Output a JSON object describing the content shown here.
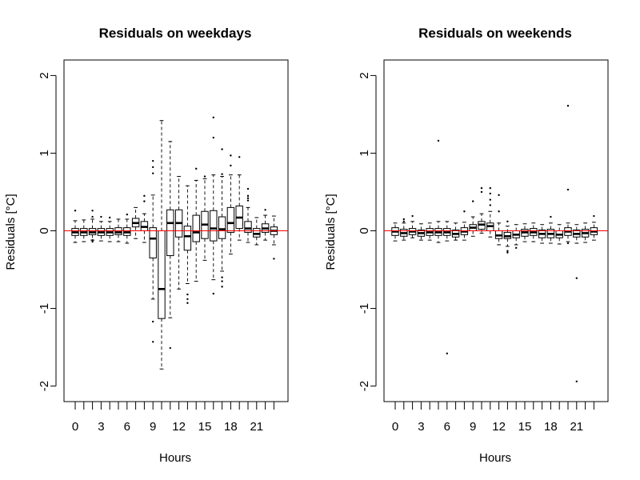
{
  "chart_data": [
    {
      "type": "box",
      "title": "Residuals on weekdays",
      "xlabel": "Hours",
      "ylabel": "Residuals [°C]",
      "ylim": [
        -2.2,
        2.2
      ],
      "yticks": [
        -2,
        -1,
        0,
        1,
        2
      ],
      "xticks": [
        0,
        3,
        6,
        9,
        12,
        15,
        18,
        21
      ],
      "reference_line": {
        "y": 0,
        "color": "#ff0000"
      },
      "boxes": [
        {
          "hour": 0,
          "q1": -0.06,
          "median": -0.02,
          "q3": 0.03,
          "whisker_low": -0.15,
          "whisker_high": 0.13,
          "outliers": [
            0.26
          ]
        },
        {
          "hour": 1,
          "q1": -0.06,
          "median": -0.02,
          "q3": 0.03,
          "whisker_low": -0.14,
          "whisker_high": 0.14,
          "outliers": []
        },
        {
          "hour": 2,
          "q1": -0.05,
          "median": -0.02,
          "q3": 0.03,
          "whisker_low": -0.12,
          "whisker_high": 0.15,
          "outliers": [
            0.26,
            0.18,
            -0.12,
            -0.14
          ]
        },
        {
          "hour": 3,
          "q1": -0.06,
          "median": -0.02,
          "q3": 0.03,
          "whisker_low": -0.13,
          "whisker_high": 0.12,
          "outliers": [
            0.18
          ]
        },
        {
          "hour": 4,
          "q1": -0.06,
          "median": -0.02,
          "q3": 0.03,
          "whisker_low": -0.14,
          "whisker_high": 0.12,
          "outliers": [
            0.17
          ]
        },
        {
          "hour": 5,
          "q1": -0.05,
          "median": -0.02,
          "q3": 0.04,
          "whisker_low": -0.14,
          "whisker_high": 0.15,
          "outliers": []
        },
        {
          "hour": 6,
          "q1": -0.06,
          "median": -0.02,
          "q3": 0.04,
          "whisker_low": -0.16,
          "whisker_high": 0.15,
          "outliers": [
            0.21
          ]
        },
        {
          "hour": 7,
          "q1": 0.05,
          "median": 0.1,
          "q3": 0.16,
          "whisker_low": -0.1,
          "whisker_high": 0.3,
          "outliers": []
        },
        {
          "hour": 8,
          "q1": 0.0,
          "median": 0.05,
          "q3": 0.12,
          "whisker_low": -0.15,
          "whisker_high": 0.22,
          "outliers": [
            0.45,
            0.38
          ]
        },
        {
          "hour": 9,
          "q1": -0.35,
          "median": -0.1,
          "q3": 0.04,
          "whisker_low": -0.88,
          "whisker_high": 0.46,
          "outliers": [
            0.9,
            0.82,
            0.74,
            -1.17,
            -1.43
          ]
        },
        {
          "hour": 10,
          "q1": -1.13,
          "median": -0.75,
          "q3": 0.0,
          "whisker_low": -1.78,
          "whisker_high": 1.42,
          "outliers": []
        },
        {
          "hour": 11,
          "q1": -0.32,
          "median": 0.1,
          "q3": 0.27,
          "whisker_low": -1.12,
          "whisker_high": 1.15,
          "outliers": [
            -1.51
          ]
        },
        {
          "hour": 12,
          "q1": -0.08,
          "median": 0.1,
          "q3": 0.27,
          "whisker_low": -0.75,
          "whisker_high": 0.7,
          "outliers": []
        },
        {
          "hour": 13,
          "q1": -0.25,
          "median": -0.07,
          "q3": 0.06,
          "whisker_low": -0.68,
          "whisker_high": 0.58,
          "outliers": [
            -0.82,
            -0.88,
            -0.93
          ]
        },
        {
          "hour": 14,
          "q1": -0.14,
          "median": -0.02,
          "q3": 0.2,
          "whisker_low": -0.65,
          "whisker_high": 0.65,
          "outliers": [
            0.8
          ]
        },
        {
          "hour": 15,
          "q1": -0.1,
          "median": 0.08,
          "q3": 0.25,
          "whisker_low": -0.38,
          "whisker_high": 0.67,
          "outliers": [
            0.7
          ]
        },
        {
          "hour": 16,
          "q1": -0.13,
          "median": 0.03,
          "q3": 0.26,
          "whisker_low": -0.63,
          "whisker_high": 0.72,
          "outliers": [
            1.46,
            1.2,
            -0.81
          ]
        },
        {
          "hour": 17,
          "q1": -0.1,
          "median": 0.02,
          "q3": 0.18,
          "whisker_low": -0.52,
          "whisker_high": 0.7,
          "outliers": [
            1.05,
            0.73,
            -0.6,
            -0.65,
            -0.72
          ]
        },
        {
          "hour": 18,
          "q1": -0.02,
          "median": 0.1,
          "q3": 0.3,
          "whisker_low": -0.3,
          "whisker_high": 0.72,
          "outliers": [
            0.97,
            0.84
          ]
        },
        {
          "hour": 19,
          "q1": 0.03,
          "median": 0.17,
          "q3": 0.32,
          "whisker_low": -0.12,
          "whisker_high": 0.72,
          "outliers": [
            0.95
          ]
        },
        {
          "hour": 20,
          "q1": -0.02,
          "median": 0.03,
          "q3": 0.12,
          "whisker_low": -0.15,
          "whisker_high": 0.3,
          "outliers": [
            0.54,
            0.45,
            0.42,
            0.39
          ]
        },
        {
          "hour": 21,
          "q1": -0.08,
          "median": -0.04,
          "q3": 0.03,
          "whisker_low": -0.18,
          "whisker_high": 0.17,
          "outliers": []
        },
        {
          "hour": 22,
          "q1": -0.02,
          "median": 0.03,
          "q3": 0.09,
          "whisker_low": -0.12,
          "whisker_high": 0.2,
          "outliers": [
            0.27
          ]
        },
        {
          "hour": 23,
          "q1": -0.05,
          "median": 0.0,
          "q3": 0.05,
          "whisker_low": -0.18,
          "whisker_high": 0.19,
          "outliers": [
            -0.36
          ]
        }
      ]
    },
    {
      "type": "box",
      "title": "Residuals on weekends",
      "xlabel": "Hours",
      "ylabel": "Residuals [°C]",
      "ylim": [
        -2.2,
        2.2
      ],
      "yticks": [
        -2,
        -1,
        0,
        1,
        2
      ],
      "xticks": [
        0,
        3,
        6,
        9,
        12,
        15,
        18,
        21
      ],
      "reference_line": {
        "y": 0,
        "color": "#ff0000"
      },
      "boxes": [
        {
          "hour": 0,
          "q1": -0.06,
          "median": -0.01,
          "q3": 0.04,
          "whisker_low": -0.13,
          "whisker_high": 0.1,
          "outliers": []
        },
        {
          "hour": 1,
          "q1": -0.07,
          "median": -0.03,
          "q3": 0.02,
          "whisker_low": -0.12,
          "whisker_high": 0.1,
          "outliers": [
            0.15,
            0.12
          ]
        },
        {
          "hour": 2,
          "q1": -0.05,
          "median": -0.01,
          "q3": 0.03,
          "whisker_low": -0.09,
          "whisker_high": 0.12,
          "outliers": [
            0.19
          ]
        },
        {
          "hour": 3,
          "q1": -0.07,
          "median": -0.03,
          "q3": 0.01,
          "whisker_low": -0.12,
          "whisker_high": 0.09,
          "outliers": []
        },
        {
          "hour": 4,
          "q1": -0.06,
          "median": -0.02,
          "q3": 0.03,
          "whisker_low": -0.12,
          "whisker_high": 0.1,
          "outliers": []
        },
        {
          "hour": 5,
          "q1": -0.06,
          "median": -0.02,
          "q3": 0.03,
          "whisker_low": -0.15,
          "whisker_high": 0.12,
          "outliers": [
            1.16
          ]
        },
        {
          "hour": 6,
          "q1": -0.06,
          "median": -0.02,
          "q3": 0.03,
          "whisker_low": -0.13,
          "whisker_high": 0.12,
          "outliers": [
            -1.58
          ]
        },
        {
          "hour": 7,
          "q1": -0.08,
          "median": -0.04,
          "q3": 0.01,
          "whisker_low": -0.12,
          "whisker_high": 0.1,
          "outliers": []
        },
        {
          "hour": 8,
          "q1": -0.05,
          "median": -0.01,
          "q3": 0.04,
          "whisker_low": -0.12,
          "whisker_high": 0.11,
          "outliers": [
            0.25
          ]
        },
        {
          "hour": 9,
          "q1": 0.0,
          "median": 0.04,
          "q3": 0.08,
          "whisker_low": -0.07,
          "whisker_high": 0.18,
          "outliers": [
            0.38
          ]
        },
        {
          "hour": 10,
          "q1": 0.02,
          "median": 0.08,
          "q3": 0.12,
          "whisker_low": -0.03,
          "whisker_high": 0.22,
          "outliers": [
            0.55,
            0.5
          ]
        },
        {
          "hour": 11,
          "q1": 0.0,
          "median": 0.06,
          "q3": 0.1,
          "whisker_low": -0.08,
          "whisker_high": 0.25,
          "outliers": [
            0.55,
            0.48,
            0.4,
            0.33
          ]
        },
        {
          "hour": 12,
          "q1": -0.1,
          "median": -0.06,
          "q3": 0.0,
          "whisker_low": -0.18,
          "whisker_high": 0.1,
          "outliers": [
            0.46,
            0.25
          ]
        },
        {
          "hour": 13,
          "q1": -0.1,
          "median": -0.07,
          "q3": -0.02,
          "whisker_low": -0.2,
          "whisker_high": 0.06,
          "outliers": [
            -0.26,
            -0.28,
            0.12
          ]
        },
        {
          "hour": 14,
          "q1": -0.09,
          "median": -0.05,
          "q3": 0.0,
          "whisker_low": -0.18,
          "whisker_high": 0.08,
          "outliers": [
            -0.22
          ]
        },
        {
          "hour": 15,
          "q1": -0.07,
          "median": -0.02,
          "q3": 0.02,
          "whisker_low": -0.14,
          "whisker_high": 0.09,
          "outliers": []
        },
        {
          "hour": 16,
          "q1": -0.06,
          "median": -0.02,
          "q3": 0.03,
          "whisker_low": -0.14,
          "whisker_high": 0.1,
          "outliers": []
        },
        {
          "hour": 17,
          "q1": -0.09,
          "median": -0.04,
          "q3": 0.01,
          "whisker_low": -0.16,
          "whisker_high": 0.08,
          "outliers": []
        },
        {
          "hour": 18,
          "q1": -0.09,
          "median": -0.04,
          "q3": 0.02,
          "whisker_low": -0.16,
          "whisker_high": 0.1,
          "outliers": [
            0.18
          ]
        },
        {
          "hour": 19,
          "q1": -0.09,
          "median": -0.05,
          "q3": 0.0,
          "whisker_low": -0.17,
          "whisker_high": 0.08,
          "outliers": []
        },
        {
          "hour": 20,
          "q1": -0.06,
          "median": -0.01,
          "q3": 0.04,
          "whisker_low": -0.14,
          "whisker_high": 0.1,
          "outliers": [
            1.61,
            0.53,
            -0.16
          ]
        },
        {
          "hour": 21,
          "q1": -0.08,
          "median": -0.04,
          "q3": 0.01,
          "whisker_low": -0.16,
          "whisker_high": 0.08,
          "outliers": [
            -0.61,
            -1.94
          ]
        },
        {
          "hour": 22,
          "q1": -0.08,
          "median": -0.03,
          "q3": 0.02,
          "whisker_low": -0.15,
          "whisker_high": 0.1,
          "outliers": []
        },
        {
          "hour": 23,
          "q1": -0.05,
          "median": -0.01,
          "q3": 0.04,
          "whisker_low": -0.12,
          "whisker_high": 0.11,
          "outliers": [
            0.19
          ]
        }
      ]
    }
  ]
}
